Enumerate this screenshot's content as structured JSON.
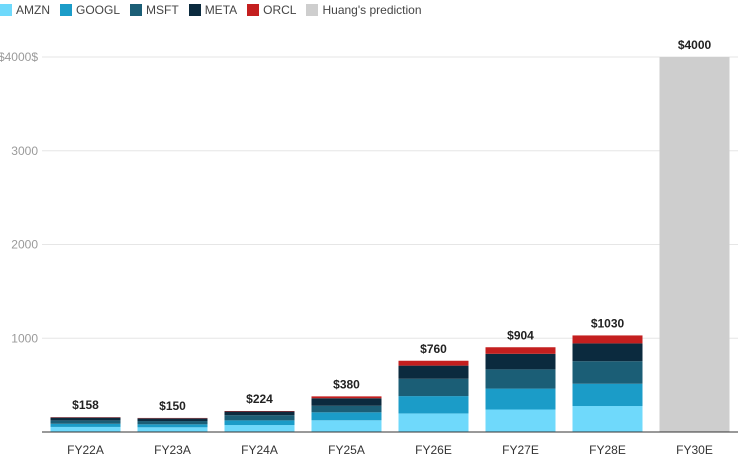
{
  "chart_data": {
    "type": "bar",
    "stacked": true,
    "categories": [
      "FY22A",
      "FY23A",
      "FY24A",
      "FY25A",
      "FY26E",
      "FY27E",
      "FY28E",
      "FY30E"
    ],
    "series": [
      {
        "name": "AMZN",
        "color": "#6fd9fb",
        "values": [
          54,
          50,
          74,
          125,
          198,
          240,
          277,
          0
        ]
      },
      {
        "name": "GOOGL",
        "color": "#1b9cc8",
        "values": [
          34,
          32,
          50,
          85,
          185,
          223,
          238,
          0
        ]
      },
      {
        "name": "MSFT",
        "color": "#1b5e76",
        "values": [
          36,
          35,
          55,
          70,
          185,
          205,
          240,
          0
        ]
      },
      {
        "name": "META",
        "color": "#0b2a3e",
        "values": [
          30,
          29,
          40,
          80,
          140,
          166,
          190,
          0
        ]
      },
      {
        "name": "ORCL",
        "color": "#c41f1f",
        "values": [
          4,
          4,
          5,
          20,
          52,
          70,
          85,
          0
        ]
      },
      {
        "name": "Huang's prediction",
        "color": "#cecece",
        "values": [
          0,
          0,
          0,
          0,
          0,
          0,
          0,
          4000
        ]
      }
    ],
    "totals": [
      158,
      150,
      224,
      380,
      760,
      904,
      1030,
      4000
    ],
    "data_labels": [
      "$158",
      "$150",
      "$224",
      "$380",
      "$760",
      "$904",
      "$1030",
      "$4000"
    ],
    "y_ticks": [
      1000,
      2000,
      3000,
      4000
    ],
    "y_tick_labels": [
      "1000",
      "2000",
      "3000",
      "$4000$"
    ],
    "ylim": [
      0,
      4200
    ],
    "grid": true,
    "legend_position": "top-left"
  }
}
